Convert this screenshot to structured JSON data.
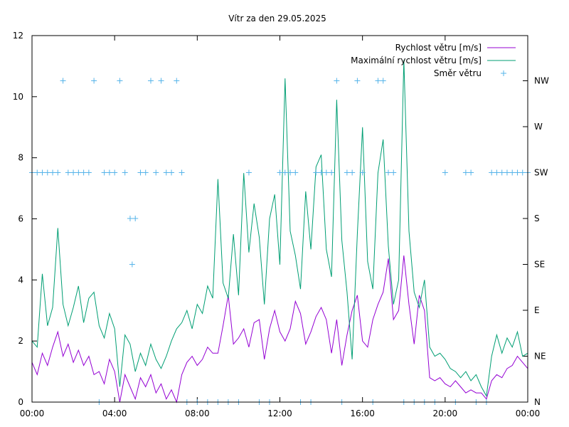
{
  "chart_data": {
    "type": "line",
    "title": "Vítr za den 29.05.2025",
    "x_ticks": [
      "00:00",
      "04:00",
      "08:00",
      "12:00",
      "16:00",
      "20:00",
      "00:00"
    ],
    "x_range_hours": [
      0,
      24
    ],
    "y_left": {
      "range": [
        0,
        12
      ],
      "ticks": [
        "0",
        "2",
        "4",
        "6",
        "8",
        "10",
        "12"
      ]
    },
    "y_right": {
      "labels": [
        "N",
        "NE",
        "E",
        "SE",
        "S",
        "SW",
        "W",
        "NW"
      ]
    },
    "legend_position": "top-right",
    "series": [
      {
        "name": "Rychlost větru [m/s]",
        "color": "#9400d3",
        "points": [
          [
            0,
            1.3
          ],
          [
            0.25,
            0.9
          ],
          [
            0.5,
            1.6
          ],
          [
            0.75,
            1.2
          ],
          [
            1,
            1.8
          ],
          [
            1.25,
            2.3
          ],
          [
            1.5,
            1.5
          ],
          [
            1.75,
            1.9
          ],
          [
            2,
            1.3
          ],
          [
            2.25,
            1.7
          ],
          [
            2.5,
            1.2
          ],
          [
            2.75,
            1.5
          ],
          [
            3,
            0.9
          ],
          [
            3.25,
            1.0
          ],
          [
            3.5,
            0.6
          ],
          [
            3.75,
            1.4
          ],
          [
            4,
            1.0
          ],
          [
            4.25,
            0.0
          ],
          [
            4.5,
            0.9
          ],
          [
            4.75,
            0.5
          ],
          [
            5,
            0.1
          ],
          [
            5.25,
            0.8
          ],
          [
            5.5,
            0.5
          ],
          [
            5.75,
            0.9
          ],
          [
            6,
            0.3
          ],
          [
            6.25,
            0.6
          ],
          [
            6.5,
            0.1
          ],
          [
            6.75,
            0.4
          ],
          [
            7,
            0.0
          ],
          [
            7.25,
            0.9
          ],
          [
            7.5,
            1.3
          ],
          [
            7.75,
            1.5
          ],
          [
            8,
            1.2
          ],
          [
            8.25,
            1.4
          ],
          [
            8.5,
            1.8
          ],
          [
            8.75,
            1.6
          ],
          [
            9,
            1.6
          ],
          [
            9.25,
            2.5
          ],
          [
            9.5,
            3.5
          ],
          [
            9.75,
            1.9
          ],
          [
            10,
            2.1
          ],
          [
            10.25,
            2.4
          ],
          [
            10.5,
            1.8
          ],
          [
            10.75,
            2.6
          ],
          [
            11,
            2.7
          ],
          [
            11.25,
            1.4
          ],
          [
            11.5,
            2.4
          ],
          [
            11.75,
            3.0
          ],
          [
            12,
            2.3
          ],
          [
            12.25,
            2.0
          ],
          [
            12.5,
            2.4
          ],
          [
            12.75,
            3.3
          ],
          [
            13,
            2.9
          ],
          [
            13.25,
            1.9
          ],
          [
            13.5,
            2.3
          ],
          [
            13.75,
            2.8
          ],
          [
            14,
            3.1
          ],
          [
            14.25,
            2.7
          ],
          [
            14.5,
            1.6
          ],
          [
            14.75,
            2.7
          ],
          [
            15,
            1.2
          ],
          [
            15.25,
            2.2
          ],
          [
            15.5,
            3.0
          ],
          [
            15.75,
            3.5
          ],
          [
            16,
            2.0
          ],
          [
            16.25,
            1.8
          ],
          [
            16.5,
            2.7
          ],
          [
            16.75,
            3.2
          ],
          [
            17,
            3.6
          ],
          [
            17.25,
            4.7
          ],
          [
            17.5,
            2.7
          ],
          [
            17.75,
            3.0
          ],
          [
            18,
            4.8
          ],
          [
            18.25,
            3.2
          ],
          [
            18.5,
            1.9
          ],
          [
            18.75,
            3.5
          ],
          [
            19,
            3.0
          ],
          [
            19.25,
            0.8
          ],
          [
            19.5,
            0.7
          ],
          [
            19.75,
            0.8
          ],
          [
            20,
            0.6
          ],
          [
            20.25,
            0.5
          ],
          [
            20.5,
            0.7
          ],
          [
            20.75,
            0.5
          ],
          [
            21,
            0.3
          ],
          [
            21.25,
            0.4
          ],
          [
            21.5,
            0.3
          ],
          [
            21.75,
            0.3
          ],
          [
            22,
            0.1
          ],
          [
            22.25,
            0.7
          ],
          [
            22.5,
            0.9
          ],
          [
            22.75,
            0.8
          ],
          [
            23,
            1.1
          ],
          [
            23.25,
            1.2
          ],
          [
            23.5,
            1.5
          ],
          [
            23.75,
            1.3
          ],
          [
            24,
            1.1
          ]
        ]
      },
      {
        "name": "Maximální rychlost větru [m/s]",
        "color": "#009e73",
        "points": [
          [
            0,
            2.0
          ],
          [
            0.25,
            1.8
          ],
          [
            0.5,
            4.2
          ],
          [
            0.75,
            2.5
          ],
          [
            1,
            3.1
          ],
          [
            1.25,
            5.7
          ],
          [
            1.5,
            3.2
          ],
          [
            1.75,
            2.5
          ],
          [
            2,
            3.1
          ],
          [
            2.25,
            3.8
          ],
          [
            2.5,
            2.6
          ],
          [
            2.75,
            3.4
          ],
          [
            3,
            3.6
          ],
          [
            3.25,
            2.5
          ],
          [
            3.5,
            2.1
          ],
          [
            3.75,
            2.9
          ],
          [
            4,
            2.4
          ],
          [
            4.25,
            0.5
          ],
          [
            4.5,
            2.2
          ],
          [
            4.75,
            1.9
          ],
          [
            5,
            1.0
          ],
          [
            5.25,
            1.6
          ],
          [
            5.5,
            1.2
          ],
          [
            5.75,
            1.9
          ],
          [
            6,
            1.4
          ],
          [
            6.25,
            1.1
          ],
          [
            6.5,
            1.5
          ],
          [
            6.75,
            2.0
          ],
          [
            7,
            2.4
          ],
          [
            7.25,
            2.6
          ],
          [
            7.5,
            3.0
          ],
          [
            7.75,
            2.4
          ],
          [
            8,
            3.2
          ],
          [
            8.25,
            2.9
          ],
          [
            8.5,
            3.8
          ],
          [
            8.75,
            3.4
          ],
          [
            9,
            7.3
          ],
          [
            9.25,
            3.9
          ],
          [
            9.5,
            3.4
          ],
          [
            9.75,
            5.5
          ],
          [
            10,
            3.5
          ],
          [
            10.25,
            7.5
          ],
          [
            10.5,
            4.9
          ],
          [
            10.75,
            6.5
          ],
          [
            11,
            5.4
          ],
          [
            11.25,
            3.2
          ],
          [
            11.5,
            6.0
          ],
          [
            11.75,
            6.8
          ],
          [
            12,
            4.5
          ],
          [
            12.25,
            10.6
          ],
          [
            12.5,
            5.6
          ],
          [
            12.75,
            4.8
          ],
          [
            13,
            3.7
          ],
          [
            13.25,
            6.9
          ],
          [
            13.5,
            5.0
          ],
          [
            13.75,
            7.7
          ],
          [
            14,
            8.1
          ],
          [
            14.25,
            5.0
          ],
          [
            14.5,
            4.1
          ],
          [
            14.75,
            9.9
          ],
          [
            15,
            5.3
          ],
          [
            15.25,
            3.6
          ],
          [
            15.5,
            1.4
          ],
          [
            15.75,
            5.5
          ],
          [
            16,
            9.0
          ],
          [
            16.25,
            4.6
          ],
          [
            16.5,
            3.7
          ],
          [
            16.75,
            7.5
          ],
          [
            17,
            8.6
          ],
          [
            17.25,
            5.1
          ],
          [
            17.5,
            3.2
          ],
          [
            17.75,
            4.0
          ],
          [
            18,
            11.2
          ],
          [
            18.25,
            5.6
          ],
          [
            18.5,
            3.6
          ],
          [
            18.75,
            3.1
          ],
          [
            19,
            4.0
          ],
          [
            19.25,
            1.8
          ],
          [
            19.5,
            1.5
          ],
          [
            19.75,
            1.6
          ],
          [
            20,
            1.4
          ],
          [
            20.25,
            1.1
          ],
          [
            20.5,
            1.0
          ],
          [
            20.75,
            0.8
          ],
          [
            21,
            1.0
          ],
          [
            21.25,
            0.7
          ],
          [
            21.5,
            0.9
          ],
          [
            21.75,
            0.5
          ],
          [
            22,
            0.2
          ],
          [
            22.25,
            1.5
          ],
          [
            22.5,
            2.2
          ],
          [
            22.75,
            1.6
          ],
          [
            23,
            2.1
          ],
          [
            23.25,
            1.8
          ],
          [
            23.5,
            2.3
          ],
          [
            23.75,
            1.5
          ],
          [
            24,
            1.6
          ]
        ]
      },
      {
        "name": "Směr větru",
        "color": "#56b4e9",
        "marker": "plus",
        "axis": "right",
        "directions": [
          "N",
          "NE",
          "E",
          "SE",
          "S",
          "SW",
          "W",
          "NW"
        ],
        "points": [
          [
            0,
            "SW"
          ],
          [
            0.25,
            "SW"
          ],
          [
            0.5,
            "SW"
          ],
          [
            0.75,
            "SW"
          ],
          [
            1,
            "SW"
          ],
          [
            1.25,
            "SW"
          ],
          [
            1.5,
            "NW"
          ],
          [
            1.75,
            "SW"
          ],
          [
            2,
            "SW"
          ],
          [
            2.25,
            "SW"
          ],
          [
            2.5,
            "SW"
          ],
          [
            2.75,
            "SW"
          ],
          [
            3,
            "NW"
          ],
          [
            3.25,
            "N"
          ],
          [
            3.5,
            "SW"
          ],
          [
            3.75,
            "SW"
          ],
          [
            4,
            "SW"
          ],
          [
            4.25,
            "NW"
          ],
          [
            4.5,
            "SW"
          ],
          [
            4.75,
            "S"
          ],
          [
            4.85,
            "SE"
          ],
          [
            5,
            "S"
          ],
          [
            5.25,
            "SW"
          ],
          [
            5.5,
            "SW"
          ],
          [
            5.75,
            "NW"
          ],
          [
            6,
            "SW"
          ],
          [
            6.25,
            "NW"
          ],
          [
            6.5,
            "SW"
          ],
          [
            6.75,
            "SW"
          ],
          [
            7,
            "NW"
          ],
          [
            7.25,
            "SW"
          ],
          [
            7.5,
            "N"
          ],
          [
            8,
            "N"
          ],
          [
            8.5,
            "N"
          ],
          [
            9,
            "N"
          ],
          [
            9.5,
            "N"
          ],
          [
            10,
            "N"
          ],
          [
            10.5,
            "SW"
          ],
          [
            11,
            "N"
          ],
          [
            11.5,
            "N"
          ],
          [
            12,
            "SW"
          ],
          [
            12.25,
            "SW"
          ],
          [
            12.5,
            "SW"
          ],
          [
            12.75,
            "SW"
          ],
          [
            13,
            "N"
          ],
          [
            13.5,
            "N"
          ],
          [
            13.75,
            "SW"
          ],
          [
            14,
            "SW"
          ],
          [
            14.25,
            "SW"
          ],
          [
            14.5,
            "SW"
          ],
          [
            14.75,
            "NW"
          ],
          [
            15,
            "N"
          ],
          [
            15.25,
            "SW"
          ],
          [
            15.5,
            "SW"
          ],
          [
            15.75,
            "NW"
          ],
          [
            16,
            "SW"
          ],
          [
            16.5,
            "N"
          ],
          [
            16.75,
            "NW"
          ],
          [
            17,
            "NW"
          ],
          [
            17.25,
            "SW"
          ],
          [
            17.5,
            "SW"
          ],
          [
            18,
            "N"
          ],
          [
            18.5,
            "N"
          ],
          [
            19,
            "N"
          ],
          [
            19.5,
            "N"
          ],
          [
            20,
            "SW"
          ],
          [
            20.5,
            "N"
          ],
          [
            21,
            "SW"
          ],
          [
            21.25,
            "SW"
          ],
          [
            21.5,
            "N"
          ],
          [
            22,
            "N"
          ],
          [
            22.25,
            "SW"
          ],
          [
            22.5,
            "SW"
          ],
          [
            22.75,
            "SW"
          ],
          [
            23,
            "SW"
          ],
          [
            23.25,
            "SW"
          ],
          [
            23.5,
            "SW"
          ],
          [
            23.75,
            "SW"
          ],
          [
            24,
            "SW"
          ]
        ]
      }
    ]
  }
}
